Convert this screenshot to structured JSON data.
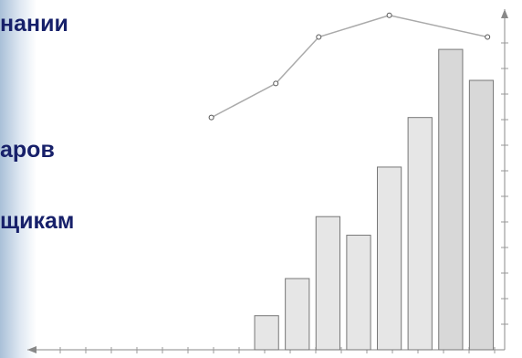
{
  "texts": [
    "нании",
    "аров",
    "щикам"
  ],
  "chart_data": {
    "type": "bar",
    "x": [
      7.5,
      8.5,
      9.5,
      10.5,
      11.5,
      12.5,
      13.5,
      14.5
    ],
    "values": [
      11,
      23,
      43,
      37,
      59,
      75,
      97,
      87
    ],
    "color": "#e6e6e6",
    "line": {
      "x": [
        5.7,
        7.8,
        9.2,
        11.5,
        14.7
      ],
      "values": [
        75,
        86,
        101,
        108,
        101
      ],
      "color": "#aaaaaa"
    },
    "xlim": [
      0,
      15.2
    ],
    "ylim": [
      0,
      110
    ]
  }
}
